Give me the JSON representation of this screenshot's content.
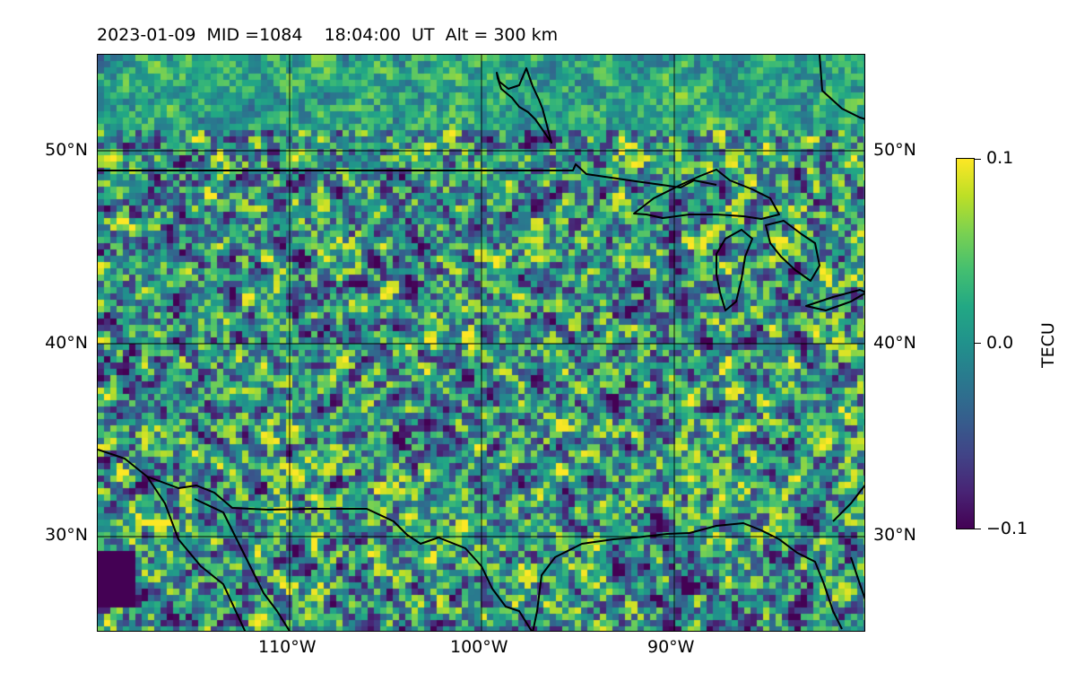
{
  "title": "2023-01-09  MID =1084    18:04:00  UT  Alt = 300 km",
  "map": {
    "lat_labels_left": [
      "50°N",
      "40°N",
      "30°N"
    ],
    "lat_labels_right": [
      "50°N",
      "40°N",
      "30°N"
    ],
    "lon_labels": [
      "110°W",
      "100°W",
      "90°W"
    ],
    "lon_range": [
      -120,
      -80
    ],
    "lat_range": [
      25,
      55
    ],
    "gridlines": true,
    "colormap": "viridis",
    "colors": {
      "coastline": "#000000",
      "gridline": "#000000",
      "colormap_stops": [
        "#440154",
        "#482475",
        "#414487",
        "#355f8d",
        "#2a788e",
        "#21918c",
        "#22a884",
        "#44bf70",
        "#7ad151",
        "#bddf26",
        "#fde725"
      ]
    }
  },
  "colorbar": {
    "label": "TECU",
    "ticks": [
      "0.1",
      "0.0",
      "−0.1"
    ],
    "range": [
      -0.1,
      0.1
    ]
  }
}
